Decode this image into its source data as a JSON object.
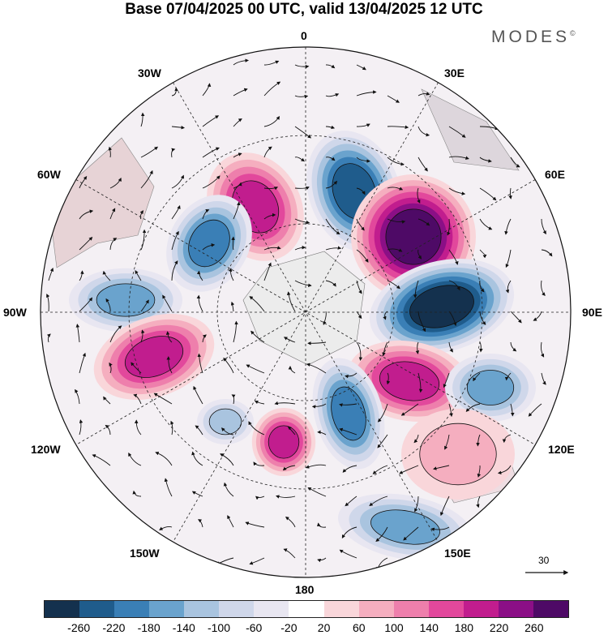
{
  "title": "Base 07/04/2025 00 UTC, valid 13/04/2025 12 UTC",
  "brand": "MODES",
  "brand_mark": "©",
  "longitude_labels": {
    "n0": "0",
    "e30": "30E",
    "e60": "60E",
    "e90": "90E",
    "e120": "120E",
    "e150": "150E",
    "s180": "180",
    "w150": "150W",
    "w120": "120W",
    "w90": "90W",
    "w60": "60W",
    "w30": "30W"
  },
  "vector_reference": "30",
  "colorbar": {
    "colors": [
      "#14314e",
      "#1f5c8c",
      "#3a7fb6",
      "#6aa3cd",
      "#a9c4df",
      "#cfd7ea",
      "#e8e6f1",
      "#ffffff",
      "#f9d6da",
      "#f5aebf",
      "#ee7fac",
      "#e2489c",
      "#c11d8e",
      "#8b0f86",
      "#4e0a66"
    ],
    "ticks": [
      "-260",
      "-220",
      "-180",
      "-140",
      "-100",
      "-60",
      "-20",
      "20",
      "60",
      "100",
      "140",
      "180",
      "220",
      "260"
    ]
  },
  "anomalies": [
    {
      "id": "ne-low-1",
      "v": -240,
      "rx": 40,
      "ry": 55,
      "rot": -20
    },
    {
      "id": "e-high-1",
      "v": 250,
      "rx": 55,
      "ry": 55,
      "rot": 0
    },
    {
      "id": "e-low-1",
      "v": -250,
      "rx": 65,
      "ry": 40,
      "rot": -15
    },
    {
      "id": "nw-high-1",
      "v": 180,
      "rx": 40,
      "ry": 50,
      "rot": -30
    },
    {
      "id": "nw-low-1",
      "v": -200,
      "rx": 35,
      "ry": 45,
      "rot": 30
    },
    {
      "id": "w-low-1",
      "v": -140,
      "rx": 50,
      "ry": 28,
      "rot": 0
    },
    {
      "id": "w-high-1",
      "v": 190,
      "rx": 55,
      "ry": 35,
      "rot": -20
    },
    {
      "id": "se-high-1",
      "v": 190,
      "rx": 55,
      "ry": 35,
      "rot": 10
    },
    {
      "id": "se-low-1",
      "v": -200,
      "rx": 30,
      "ry": 50,
      "rot": -15
    },
    {
      "id": "s-high-1",
      "v": 170,
      "rx": 28,
      "ry": 30,
      "rot": 0
    },
    {
      "id": "sw-low-1",
      "v": -100,
      "rx": 25,
      "ry": 20,
      "rot": 0
    },
    {
      "id": "e-low-2",
      "v": -140,
      "rx": 40,
      "ry": 30,
      "rot": 0
    },
    {
      "id": "se-high-2",
      "v": 80,
      "rx": 50,
      "ry": 40,
      "rot": 0
    },
    {
      "id": "sse-low-1",
      "v": -140,
      "rx": 60,
      "ry": 28,
      "rot": 10
    }
  ]
}
